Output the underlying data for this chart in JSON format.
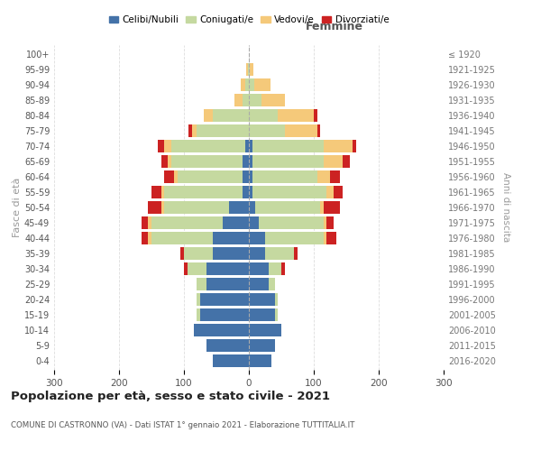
{
  "age_groups": [
    "0-4",
    "5-9",
    "10-14",
    "15-19",
    "20-24",
    "25-29",
    "30-34",
    "35-39",
    "40-44",
    "45-49",
    "50-54",
    "55-59",
    "60-64",
    "65-69",
    "70-74",
    "75-79",
    "80-84",
    "85-89",
    "90-94",
    "95-99",
    "100+"
  ],
  "birth_years": [
    "2016-2020",
    "2011-2015",
    "2006-2010",
    "2001-2005",
    "1996-2000",
    "1991-1995",
    "1986-1990",
    "1981-1985",
    "1976-1980",
    "1971-1975",
    "1966-1970",
    "1961-1965",
    "1956-1960",
    "1951-1955",
    "1946-1950",
    "1941-1945",
    "1936-1940",
    "1931-1935",
    "1926-1930",
    "1921-1925",
    "≤ 1920"
  ],
  "males": {
    "celibi": [
      55,
      65,
      85,
      75,
      75,
      65,
      65,
      55,
      55,
      40,
      30,
      10,
      10,
      10,
      5,
      0,
      0,
      0,
      0,
      0,
      0
    ],
    "coniugati": [
      0,
      0,
      0,
      5,
      5,
      15,
      30,
      45,
      95,
      110,
      100,
      120,
      100,
      110,
      115,
      80,
      55,
      10,
      5,
      2,
      0
    ],
    "vedovi": [
      0,
      0,
      0,
      0,
      0,
      0,
      0,
      0,
      5,
      5,
      5,
      5,
      5,
      5,
      10,
      8,
      15,
      12,
      8,
      2,
      0
    ],
    "divorziati": [
      0,
      0,
      0,
      0,
      0,
      0,
      5,
      5,
      10,
      10,
      20,
      15,
      15,
      10,
      10,
      5,
      0,
      0,
      0,
      0,
      0
    ]
  },
  "females": {
    "nubili": [
      35,
      40,
      50,
      40,
      40,
      30,
      30,
      25,
      25,
      15,
      10,
      5,
      5,
      5,
      5,
      0,
      0,
      0,
      0,
      0,
      0
    ],
    "coniugate": [
      0,
      0,
      0,
      5,
      5,
      10,
      20,
      45,
      90,
      100,
      100,
      115,
      100,
      110,
      110,
      55,
      45,
      20,
      8,
      2,
      0
    ],
    "vedove": [
      0,
      0,
      0,
      0,
      0,
      0,
      0,
      0,
      5,
      5,
      5,
      10,
      20,
      30,
      45,
      50,
      55,
      35,
      25,
      5,
      0
    ],
    "divorziate": [
      0,
      0,
      0,
      0,
      0,
      0,
      5,
      5,
      15,
      10,
      25,
      15,
      15,
      10,
      5,
      5,
      5,
      0,
      0,
      0,
      0
    ]
  },
  "colors": {
    "celibi": "#4472a8",
    "coniugati": "#c5d9a0",
    "vedovi": "#f5c97a",
    "divorziati": "#cc2222"
  },
  "title": "Popolazione per età, sesso e stato civile - 2021",
  "subtitle": "COMUNE DI CASTRONNO (VA) - Dati ISTAT 1° gennaio 2021 - Elaborazione TUTTITALIA.IT",
  "ylabel_left": "Fasce di età",
  "ylabel_right": "Anni di nascita",
  "xlabel_right": "Femmine",
  "xlim": 300,
  "background_color": "#ffffff",
  "grid_color": "#cccccc"
}
